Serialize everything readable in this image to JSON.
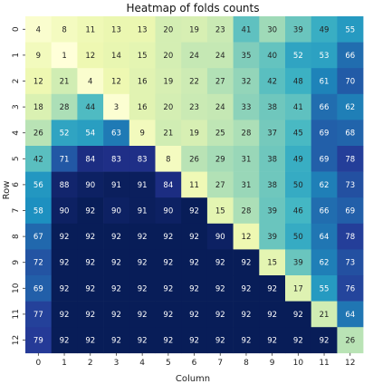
{
  "chart_data": {
    "type": "heatmap",
    "title": "Heatmap of folds counts",
    "xlabel": "Column",
    "ylabel": "Row",
    "x_ticks": [
      "0",
      "1",
      "2",
      "3",
      "4",
      "5",
      "6",
      "7",
      "8",
      "9",
      "10",
      "11",
      "12"
    ],
    "y_ticks": [
      "0",
      "1",
      "2",
      "3",
      "4",
      "5",
      "6",
      "7",
      "8",
      "9",
      "10",
      "11",
      "12"
    ],
    "colormap": "YlGnBu",
    "value_range": [
      1,
      92
    ],
    "values": [
      [
        4,
        8,
        11,
        13,
        13,
        20,
        19,
        23,
        41,
        30,
        39,
        49,
        55
      ],
      [
        9,
        1,
        12,
        14,
        15,
        20,
        24,
        24,
        35,
        40,
        52,
        53,
        66
      ],
      [
        12,
        21,
        4,
        12,
        16,
        19,
        22,
        27,
        32,
        42,
        48,
        61,
        70
      ],
      [
        18,
        28,
        44,
        3,
        16,
        20,
        23,
        24,
        33,
        38,
        41,
        66,
        62
      ],
      [
        26,
        52,
        54,
        63,
        9,
        21,
        19,
        25,
        28,
        37,
        45,
        69,
        68
      ],
      [
        42,
        71,
        84,
        83,
        83,
        8,
        26,
        29,
        31,
        38,
        49,
        69,
        78
      ],
      [
        56,
        88,
        90,
        91,
        91,
        84,
        11,
        27,
        31,
        38,
        50,
        62,
        73
      ],
      [
        58,
        90,
        92,
        90,
        91,
        90,
        92,
        15,
        28,
        39,
        46,
        66,
        69
      ],
      [
        67,
        92,
        92,
        92,
        92,
        92,
        92,
        90,
        12,
        39,
        50,
        64,
        78
      ],
      [
        72,
        92,
        92,
        92,
        92,
        92,
        92,
        92,
        92,
        15,
        39,
        62,
        73
      ],
      [
        69,
        92,
        92,
        92,
        92,
        92,
        92,
        92,
        92,
        92,
        17,
        55,
        76
      ],
      [
        77,
        92,
        92,
        92,
        92,
        92,
        92,
        92,
        92,
        92,
        92,
        21,
        64
      ],
      [
        79,
        92,
        92,
        92,
        92,
        92,
        92,
        92,
        92,
        92,
        92,
        92,
        26
      ]
    ]
  }
}
